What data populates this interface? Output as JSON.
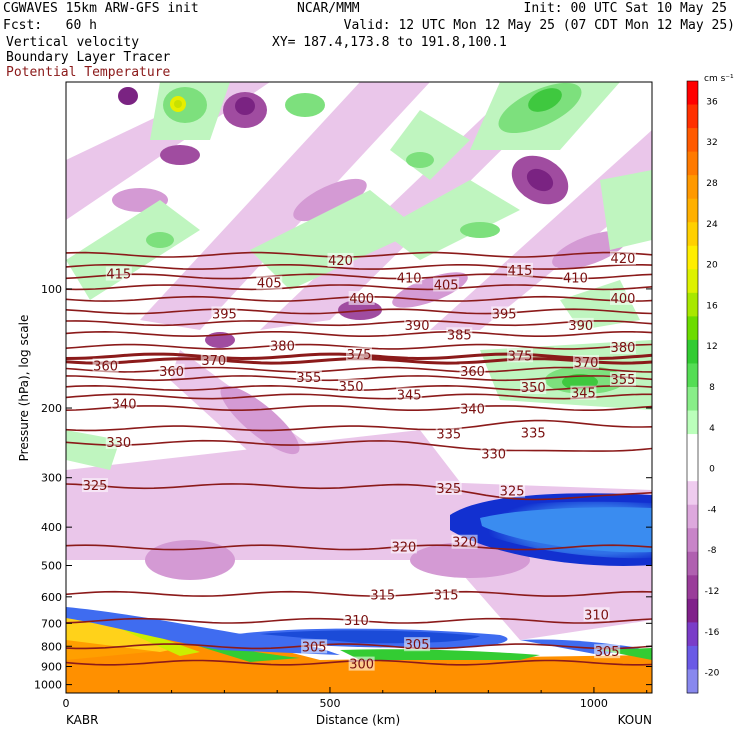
{
  "header": {
    "line1_left": "CGWAVES 15km ARW-GFS init",
    "line2_left": "Fcst:   60 h",
    "line3_left": "Vertical velocity",
    "line4_left": "Boundary Layer Tracer",
    "line5_left": "Potential Temperature",
    "line1_center": "NCAR/MMM",
    "line3_center": "XY= 187.4,173.8 to 191.8,100.1",
    "line1_right": "Init: 00 UTC Sat 10 May 25",
    "line2_right": "Valid: 12 UTC Mon 12 May 25 (07 CDT Mon 12 May 25)",
    "potential_temp_color": "#8b1a1a"
  },
  "chart_data": {
    "type": "cross-section",
    "xlabel": "Distance (km)",
    "ylabel": "Pressure (hPa), log scale",
    "x_ticks": [
      "0",
      "500",
      "1000"
    ],
    "x_range": [
      0,
      1110
    ],
    "y_ticks": [
      "100",
      "200",
      "300",
      "400",
      "500",
      "600",
      "700",
      "800",
      "900",
      "1000"
    ],
    "y_range": [
      1050,
      30
    ],
    "start_label": "KABR",
    "end_label": "KOUN",
    "colorbar": {
      "unit": "cm s⁻¹",
      "tick_labels": [
        "36",
        "32",
        "28",
        "24",
        "20",
        "16",
        "12",
        "8",
        "4",
        "0",
        "-4",
        "-8",
        "-12",
        "-16",
        "-20"
      ],
      "colors": [
        "#ff0000",
        "#ff3000",
        "#ff5a00",
        "#ff7a00",
        "#ff9900",
        "#ffb000",
        "#ffd000",
        "#ffee00",
        "#ddf200",
        "#a8e800",
        "#6cdc00",
        "#33cc33",
        "#55dd55",
        "#88ee88",
        "#bbffbb",
        "#ffffff",
        "#ffffff",
        "#efccef",
        "#dda8dd",
        "#c884c8",
        "#b060b0",
        "#9a3c9a",
        "#80208a",
        "#7a3cc8",
        "#6a5ae6",
        "#8888ee"
      ]
    },
    "isentropes": [
      {
        "theta": 300,
        "p": 880
      },
      {
        "theta": 305,
        "p": 800
      },
      {
        "theta": 310,
        "p": 690
      },
      {
        "theta": 315,
        "p": 590
      },
      {
        "theta": 320,
        "p": 450
      },
      {
        "theta": 325,
        "p": 315
      },
      {
        "theta": 330,
        "p": 245
      },
      {
        "theta": 335,
        "p": 225
      },
      {
        "theta": 340,
        "p": 200
      },
      {
        "theta": 345,
        "p": 187
      },
      {
        "theta": 350,
        "p": 178
      },
      {
        "theta": 355,
        "p": 168
      },
      {
        "theta": 360,
        "p": 160
      },
      {
        "theta": 370,
        "p": 152
      },
      {
        "theta": 375,
        "p": 148
      },
      {
        "theta": 380,
        "p": 140
      },
      {
        "theta": 385,
        "p": 130
      },
      {
        "theta": 390,
        "p": 122
      },
      {
        "theta": 395,
        "p": 114
      },
      {
        "theta": 400,
        "p": 106
      },
      {
        "theta": 405,
        "p": 99
      },
      {
        "theta": 410,
        "p": 93
      },
      {
        "theta": 415,
        "p": 88
      },
      {
        "theta": 420,
        "p": 82
      }
    ],
    "contour_labels": [
      {
        "text": "415",
        "x": 100,
        "p": 92
      },
      {
        "text": "405",
        "x": 385,
        "p": 97
      },
      {
        "text": "420",
        "x": 520,
        "p": 85
      },
      {
        "text": "410",
        "x": 650,
        "p": 94
      },
      {
        "text": "405",
        "x": 720,
        "p": 98
      },
      {
        "text": "415",
        "x": 860,
        "p": 90
      },
      {
        "text": "410",
        "x": 965,
        "p": 94
      },
      {
        "text": "420",
        "x": 1055,
        "p": 84
      },
      {
        "text": "400",
        "x": 1055,
        "p": 106
      },
      {
        "text": "395",
        "x": 300,
        "p": 116
      },
      {
        "text": "400",
        "x": 560,
        "p": 106
      },
      {
        "text": "395",
        "x": 830,
        "p": 116
      },
      {
        "text": "390",
        "x": 665,
        "p": 124
      },
      {
        "text": "390",
        "x": 975,
        "p": 124
      },
      {
        "text": "385",
        "x": 745,
        "p": 131
      },
      {
        "text": "380",
        "x": 410,
        "p": 140
      },
      {
        "text": "380",
        "x": 1055,
        "p": 141
      },
      {
        "text": "375",
        "x": 555,
        "p": 147
      },
      {
        "text": "375",
        "x": 860,
        "p": 148
      },
      {
        "text": "370",
        "x": 280,
        "p": 152
      },
      {
        "text": "370",
        "x": 985,
        "p": 154
      },
      {
        "text": "360",
        "x": 75,
        "p": 157
      },
      {
        "text": "360",
        "x": 200,
        "p": 162
      },
      {
        "text": "360",
        "x": 770,
        "p": 162
      },
      {
        "text": "355",
        "x": 460,
        "p": 168
      },
      {
        "text": "355",
        "x": 1055,
        "p": 170
      },
      {
        "text": "350",
        "x": 540,
        "p": 177
      },
      {
        "text": "345",
        "x": 650,
        "p": 186
      },
      {
        "text": "350",
        "x": 885,
        "p": 178
      },
      {
        "text": "345",
        "x": 980,
        "p": 184
      },
      {
        "text": "340",
        "x": 110,
        "p": 196
      },
      {
        "text": "340",
        "x": 770,
        "p": 202
      },
      {
        "text": "335",
        "x": 725,
        "p": 233
      },
      {
        "text": "335",
        "x": 885,
        "p": 232
      },
      {
        "text": "330",
        "x": 100,
        "p": 245
      },
      {
        "text": "330",
        "x": 810,
        "p": 262
      },
      {
        "text": "325",
        "x": 55,
        "p": 315
      },
      {
        "text": "325",
        "x": 725,
        "p": 320
      },
      {
        "text": "325",
        "x": 845,
        "p": 325
      },
      {
        "text": "320",
        "x": 640,
        "p": 450
      },
      {
        "text": "320",
        "x": 755,
        "p": 438
      },
      {
        "text": "315",
        "x": 600,
        "p": 595
      },
      {
        "text": "315",
        "x": 720,
        "p": 595
      },
      {
        "text": "310",
        "x": 550,
        "p": 690
      },
      {
        "text": "310",
        "x": 1005,
        "p": 668
      },
      {
        "text": "305",
        "x": 470,
        "p": 805
      },
      {
        "text": "305",
        "x": 665,
        "p": 795
      },
      {
        "text": "305",
        "x": 1025,
        "p": 828
      },
      {
        "text": "300",
        "x": 560,
        "p": 890
      }
    ]
  }
}
